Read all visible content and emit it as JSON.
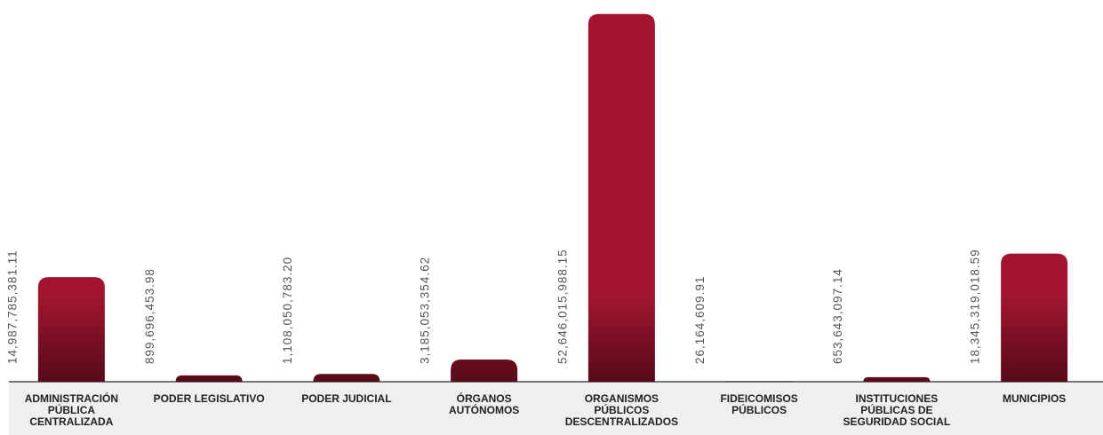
{
  "chart_data": {
    "type": "bar",
    "categories": [
      "ADMINISTRACIÓN\nPÚBLICA\nCENTRALIZADA",
      "PODER LEGISLATIVO",
      "PODER JUDICIAL",
      "ÓRGANOS\nAUTÓNOMOS",
      "ORGANISMOS\nPÚBLICOS\nDESCENTRALIZADOS",
      "FIDEICOMISOS\nPÚBLICOS",
      "INSTITUCIONES\nPÚBLICAS DE\nSEGURIDAD SOCIAL",
      "MUNICIPIOS"
    ],
    "values": [
      14987785381.11,
      899696453.98,
      1108050783.2,
      3185053354.62,
      52646015988.15,
      26164609.91,
      653643097.14,
      18345319018.59
    ],
    "value_labels": [
      "14,987,785,381.11",
      "899,696,453.98",
      "1,108,050,783.20",
      "3,185,053,354.62",
      "52,646,015,988.15",
      "26,164,609.91",
      "653,643,097.14",
      "18,345,319,018.59"
    ],
    "color": "#a3152f",
    "ylim": [
      0,
      53000000000
    ]
  }
}
